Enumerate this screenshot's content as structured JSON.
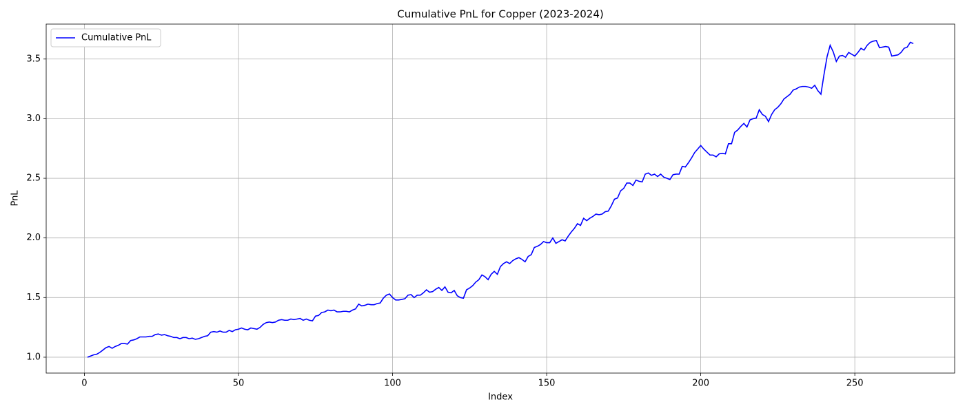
{
  "chart_data": {
    "type": "line",
    "title": "Cumulative PnL for Copper (2023-2024)",
    "x_label": "Index",
    "y_label": "PnL",
    "x": [
      1,
      2,
      3,
      4,
      5,
      6,
      7,
      8,
      9,
      10,
      11,
      12,
      13,
      14,
      15,
      16,
      17,
      18,
      19,
      20,
      21,
      22,
      23,
      24,
      25,
      26,
      27,
      28,
      29,
      30,
      31,
      32,
      33,
      34,
      35,
      36,
      37,
      38,
      39,
      40,
      41,
      42,
      43,
      44,
      45,
      46,
      47,
      48,
      49,
      50,
      51,
      52,
      53,
      54,
      55,
      56,
      57,
      58,
      59,
      60,
      61,
      62,
      63,
      64,
      65,
      66,
      67,
      68,
      69,
      70,
      71,
      72,
      73,
      74,
      75,
      76,
      77,
      78,
      79,
      80,
      81,
      82,
      83,
      84,
      85,
      86,
      87,
      88,
      89,
      90,
      91,
      92,
      93,
      94,
      95,
      96,
      97,
      98,
      99,
      100,
      101,
      102,
      103,
      104,
      105,
      106,
      107,
      108,
      109,
      110,
      111,
      112,
      113,
      114,
      115,
      116,
      117,
      118,
      119,
      120,
      121,
      122,
      123,
      124,
      125,
      126,
      127,
      128,
      129,
      130,
      131,
      132,
      133,
      134,
      135,
      136,
      137,
      138,
      139,
      140,
      141,
      142,
      143,
      144,
      145,
      146,
      147,
      148,
      149,
      150,
      151,
      152,
      153,
      154,
      155,
      156,
      157,
      158,
      159,
      160,
      161,
      162,
      163,
      164,
      165,
      166,
      167,
      168,
      169,
      170,
      171,
      172,
      173,
      174,
      175,
      176,
      177,
      178,
      179,
      180,
      181,
      182,
      183,
      184,
      185,
      186,
      187,
      188,
      189,
      190,
      191,
      192,
      193,
      194,
      195,
      196,
      197,
      198,
      199,
      200,
      201,
      202,
      203,
      204,
      205,
      206,
      207,
      208,
      209,
      210,
      211,
      212,
      213,
      214,
      215,
      216,
      217,
      218,
      219,
      220,
      221,
      222,
      223,
      224,
      225,
      226,
      227,
      228,
      229,
      230,
      231,
      232,
      233,
      234,
      235,
      236,
      237,
      238,
      239,
      240,
      241,
      242,
      243,
      244,
      245,
      246,
      247,
      248,
      249,
      250,
      251,
      252,
      253,
      254,
      255,
      256,
      257,
      258,
      259,
      260,
      261,
      262,
      263,
      264,
      265,
      266,
      267,
      268,
      269
    ],
    "series": [
      {
        "name": "Cumulative PnL",
        "color": "#0000ff",
        "values": [
          1.0,
          1.01,
          1.02,
          1.025,
          1.04,
          1.06,
          1.08,
          1.09,
          1.075,
          1.09,
          1.1,
          1.115,
          1.115,
          1.11,
          1.14,
          1.145,
          1.155,
          1.17,
          1.17,
          1.17,
          1.175,
          1.175,
          1.19,
          1.195,
          1.185,
          1.19,
          1.18,
          1.175,
          1.165,
          1.165,
          1.155,
          1.165,
          1.165,
          1.155,
          1.16,
          1.15,
          1.155,
          1.165,
          1.175,
          1.18,
          1.21,
          1.215,
          1.21,
          1.22,
          1.21,
          1.21,
          1.225,
          1.215,
          1.23,
          1.235,
          1.245,
          1.235,
          1.23,
          1.245,
          1.24,
          1.235,
          1.25,
          1.275,
          1.29,
          1.295,
          1.29,
          1.295,
          1.31,
          1.315,
          1.31,
          1.31,
          1.32,
          1.315,
          1.32,
          1.325,
          1.31,
          1.32,
          1.31,
          1.305,
          1.345,
          1.35,
          1.375,
          1.38,
          1.395,
          1.39,
          1.395,
          1.38,
          1.38,
          1.385,
          1.385,
          1.38,
          1.395,
          1.405,
          1.445,
          1.43,
          1.435,
          1.445,
          1.44,
          1.44,
          1.45,
          1.455,
          1.495,
          1.52,
          1.53,
          1.5,
          1.48,
          1.48,
          1.485,
          1.49,
          1.52,
          1.525,
          1.5,
          1.52,
          1.52,
          1.54,
          1.565,
          1.545,
          1.55,
          1.57,
          1.585,
          1.56,
          1.59,
          1.545,
          1.54,
          1.56,
          1.515,
          1.5,
          1.495,
          1.565,
          1.58,
          1.6,
          1.63,
          1.65,
          1.69,
          1.675,
          1.65,
          1.695,
          1.72,
          1.695,
          1.76,
          1.785,
          1.8,
          1.785,
          1.81,
          1.825,
          1.835,
          1.82,
          1.8,
          1.845,
          1.86,
          1.92,
          1.93,
          1.945,
          1.97,
          1.96,
          1.96,
          2.0,
          1.955,
          1.97,
          1.985,
          1.975,
          2.015,
          2.05,
          2.08,
          2.12,
          2.105,
          2.165,
          2.145,
          2.165,
          2.18,
          2.2,
          2.195,
          2.2,
          2.22,
          2.225,
          2.27,
          2.325,
          2.335,
          2.395,
          2.415,
          2.46,
          2.46,
          2.44,
          2.485,
          2.475,
          2.47,
          2.535,
          2.545,
          2.525,
          2.535,
          2.515,
          2.535,
          2.51,
          2.5,
          2.49,
          2.53,
          2.535,
          2.535,
          2.6,
          2.595,
          2.63,
          2.67,
          2.715,
          2.745,
          2.775,
          2.745,
          2.72,
          2.695,
          2.695,
          2.68,
          2.705,
          2.71,
          2.705,
          2.79,
          2.79,
          2.885,
          2.905,
          2.935,
          2.96,
          2.93,
          2.99,
          3.0,
          3.005,
          3.075,
          3.035,
          3.02,
          2.975,
          3.035,
          3.075,
          3.095,
          3.125,
          3.165,
          3.185,
          3.205,
          3.24,
          3.25,
          3.265,
          3.27,
          3.27,
          3.265,
          3.255,
          3.28,
          3.235,
          3.205,
          3.37,
          3.52,
          3.615,
          3.56,
          3.48,
          3.525,
          3.53,
          3.515,
          3.555,
          3.54,
          3.525,
          3.555,
          3.59,
          3.575,
          3.615,
          3.64,
          3.65,
          3.655,
          3.595,
          3.6,
          3.605,
          3.6,
          3.525,
          3.53,
          3.535,
          3.555,
          3.59,
          3.6,
          3.64,
          3.63
        ]
      }
    ],
    "xlim": [
      -12.4,
      282.4
    ],
    "ylim": [
      0.867,
      3.793
    ],
    "xticks": [
      0,
      50,
      100,
      150,
      200,
      250
    ],
    "yticks": [
      {
        "value": 1,
        "label": "1.0"
      },
      1.5,
      {
        "value": 2,
        "label": "2.0"
      },
      2.5,
      {
        "value": 3,
        "label": "3.0"
      },
      3.5
    ],
    "grid": true,
    "legend": "upper-left"
  }
}
